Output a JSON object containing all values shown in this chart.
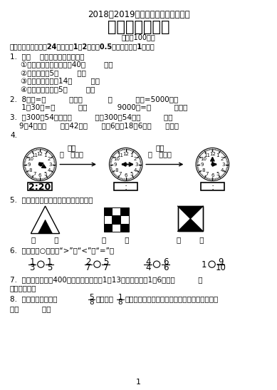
{
  "title_line1": "2018＾2019学年度上期期末综合测试",
  "title_line2": "三年级数学试卷",
  "title_line3": "（总分100分）",
  "section1": "一、我会填空。（全24分，其中1、2题每癰0.5分，其余每癰1分。）",
  "q1_header": "1.  在（    ）里填上合适的单位。",
  "q1_1": "①我们上一节课的时间是40（        ）。",
  "q1_2": "②一棵大树高5（        ）。",
  "q1_3": "③小明身高大约是14（        ）。",
  "q1_4": "④这辆货车最多衘5（        ）。",
  "q2_header": "2.  8分米=（          ）厘米           （          ）吨=5000千克",
  "q2_2": "     1制30秒=（          ）秒             9000米=（          ）千米",
  "q3_1": "3.  比300夐54的数是（          ），300比54多（          ），",
  "q3_2": "    9的4倍是（      ），42是（      ）的6倍，18是6的（      ）倍。",
  "q4_label": "4.",
  "clock1_time": "2:20",
  "clock1_label": "经过",
  "clock1_sub": "（   ）分钟",
  "clock2_label": "经过",
  "clock2_sub": "（   ）分钟",
  "clock2_display": ":",
  "clock3_display": ":",
  "q5_header": "5.  用分数表示下面各图中的阴影部分。",
  "q6_header": "6.  在下面的○中填上“>”、“<”或“=”。",
  "q7": "7.  小东和小明进行400米赛跑，小东用了1制13秒，小明用了1制6秒，（          ）",
  "q7_2": "跑得快一些。",
  "q8_prefix": "8.  一块菜地，其中的",
  "q8_frac1_num": "5",
  "q8_frac1_den": "8",
  "q8_mid": "种白菜，",
  "q8_frac2_num": "1",
  "q8_frac2_den": "8",
  "q8_end": "种芹菜，剩下的种萨卜。种萨卜的地占整块菜地",
  "q8_2": "的（          ）。",
  "page_num": "1",
  "bg_color": "#ffffff",
  "text_color": "#000000"
}
